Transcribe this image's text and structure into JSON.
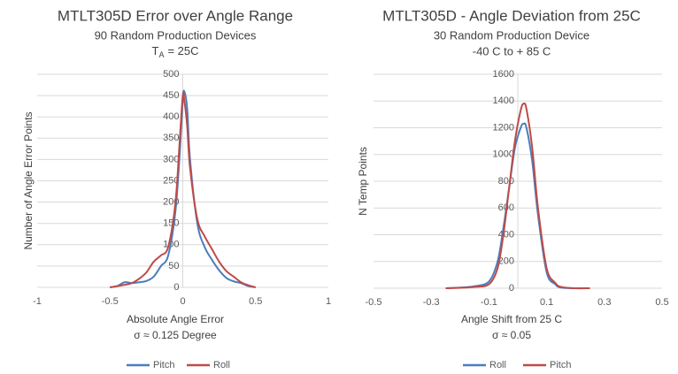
{
  "chart_data": [
    {
      "type": "line",
      "title": "MTLT305D Error over Angle Range",
      "subtitle": [
        "90 Random Production Devices"
      ],
      "subtitle_symbol": "T",
      "subtitle_symbol_sub": "A",
      "subtitle_rest": "= 25C",
      "x_label": [
        "Absolute Angle Error",
        "σ ≈ 0.125 Degree"
      ],
      "y_label": "Number of Angle Error Points",
      "x": [
        -0.5,
        -0.45,
        -0.4,
        -0.35,
        -0.3,
        -0.25,
        -0.2,
        -0.15,
        -0.1,
        -0.05,
        -0.02,
        0,
        0.01,
        0.03,
        0.05,
        0.1,
        0.15,
        0.2,
        0.25,
        0.3,
        0.35,
        0.4,
        0.45,
        0.5
      ],
      "series": [
        {
          "name": "Pitch",
          "color": "#4a7ebb",
          "values": [
            0,
            3,
            12,
            10,
            12,
            15,
            25,
            50,
            75,
            180,
            320,
            440,
            460,
            420,
            300,
            150,
            95,
            65,
            40,
            22,
            14,
            10,
            3,
            0
          ]
        },
        {
          "name": "Roll",
          "color": "#be4b48",
          "values": [
            0,
            3,
            6,
            10,
            20,
            35,
            60,
            75,
            95,
            200,
            350,
            450,
            440,
            380,
            280,
            160,
            120,
            90,
            60,
            38,
            25,
            12,
            5,
            0
          ]
        }
      ],
      "xlim": [
        -1,
        1
      ],
      "xticks": [
        -1,
        -0.5,
        0,
        0.5,
        1
      ],
      "ylim": [
        0,
        500
      ],
      "yticks": [
        0,
        50,
        100,
        150,
        200,
        250,
        300,
        350,
        400,
        450,
        500
      ],
      "grid": true,
      "legend": "bottom"
    },
    {
      "type": "line",
      "title": "MTLT305D - Angle Deviation from 25C",
      "subtitle": [
        "30 Random Production Device",
        "-40 C to + 85 C"
      ],
      "x_label": [
        "Angle Shift from 25 C",
        "σ ≈ 0.05"
      ],
      "y_label": "N Temp Points",
      "x": [
        -0.25,
        -0.2,
        -0.15,
        -0.1,
        -0.07,
        -0.05,
        -0.03,
        -0.01,
        0.01,
        0.02,
        0.03,
        0.05,
        0.07,
        0.1,
        0.13,
        0.15,
        0.2,
        0.25
      ],
      "series": [
        {
          "name": "Roll",
          "color": "#4a7ebb",
          "values": [
            0,
            5,
            15,
            50,
            200,
            450,
            750,
            1050,
            1200,
            1230,
            1200,
            950,
            550,
            120,
            30,
            5,
            0,
            0
          ]
        },
        {
          "name": "Pitch",
          "color": "#be4b48",
          "values": [
            0,
            3,
            10,
            30,
            150,
            400,
            750,
            1100,
            1330,
            1380,
            1340,
            1050,
            600,
            150,
            40,
            10,
            0,
            0
          ]
        }
      ],
      "xlim": [
        -0.5,
        0.5
      ],
      "xticks": [
        -0.5,
        -0.3,
        -0.1,
        0.1,
        0.3,
        0.5
      ],
      "ylim": [
        0,
        1600
      ],
      "yticks": [
        0,
        200,
        400,
        600,
        800,
        1000,
        1200,
        1400,
        1600
      ],
      "grid": true,
      "legend": "bottom"
    }
  ]
}
